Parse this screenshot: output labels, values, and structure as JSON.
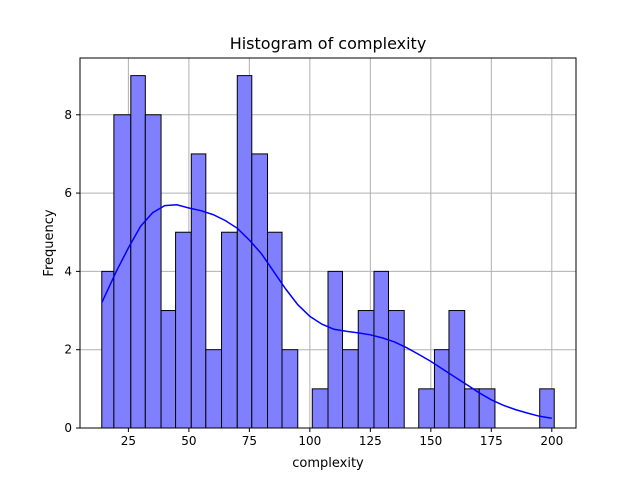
{
  "chart_data": {
    "type": "histogram",
    "title": "Histogram of complexity",
    "xlabel": "complexity",
    "ylabel": "Frequency",
    "xlim": [
      5,
      210
    ],
    "ylim": [
      0,
      9.45
    ],
    "xticks": [
      25,
      50,
      75,
      100,
      125,
      150,
      175,
      200
    ],
    "yticks": [
      0,
      2,
      4,
      6,
      8
    ],
    "grid": true,
    "bar_color": "#8080ff",
    "bar_edge_color": "#000000",
    "bins": [
      {
        "x0": 14.0,
        "x1": 19.0,
        "count": 4
      },
      {
        "x0": 19.0,
        "x1": 26.0,
        "count": 8
      },
      {
        "x0": 26.0,
        "x1": 32.0,
        "count": 9
      },
      {
        "x0": 32.0,
        "x1": 38.5,
        "count": 8
      },
      {
        "x0": 38.5,
        "x1": 44.5,
        "count": 3
      },
      {
        "x0": 44.5,
        "x1": 51.0,
        "count": 5
      },
      {
        "x0": 51.0,
        "x1": 57.0,
        "count": 7
      },
      {
        "x0": 57.0,
        "x1": 63.5,
        "count": 2
      },
      {
        "x0": 63.5,
        "x1": 70.0,
        "count": 5
      },
      {
        "x0": 70.0,
        "x1": 76.0,
        "count": 9
      },
      {
        "x0": 76.0,
        "x1": 82.5,
        "count": 7
      },
      {
        "x0": 82.5,
        "x1": 88.5,
        "count": 5
      },
      {
        "x0": 88.5,
        "x1": 95.0,
        "count": 2
      },
      {
        "x0": 95.0,
        "x1": 101.0,
        "count": 0
      },
      {
        "x0": 101.0,
        "x1": 107.5,
        "count": 1
      },
      {
        "x0": 107.5,
        "x1": 113.5,
        "count": 4
      },
      {
        "x0": 113.5,
        "x1": 120.0,
        "count": 2
      },
      {
        "x0": 120.0,
        "x1": 126.5,
        "count": 3
      },
      {
        "x0": 126.5,
        "x1": 132.5,
        "count": 4
      },
      {
        "x0": 132.5,
        "x1": 139.0,
        "count": 3
      },
      {
        "x0": 139.0,
        "x1": 145.0,
        "count": 0
      },
      {
        "x0": 145.0,
        "x1": 151.5,
        "count": 1
      },
      {
        "x0": 151.5,
        "x1": 157.5,
        "count": 2
      },
      {
        "x0": 157.5,
        "x1": 164.0,
        "count": 3
      },
      {
        "x0": 164.0,
        "x1": 170.0,
        "count": 1
      },
      {
        "x0": 170.0,
        "x1": 176.5,
        "count": 1
      },
      {
        "x0": 176.5,
        "x1": 182.5,
        "count": 0
      },
      {
        "x0": 182.5,
        "x1": 189.0,
        "count": 0
      },
      {
        "x0": 189.0,
        "x1": 195.0,
        "count": 0
      },
      {
        "x0": 195.0,
        "x1": 201.0,
        "count": 1
      }
    ],
    "kde": {
      "color": "#0000ff",
      "x": [
        14,
        20,
        25,
        30,
        35,
        40,
        45,
        50,
        55,
        60,
        65,
        70,
        75,
        80,
        85,
        90,
        95,
        100,
        105,
        110,
        115,
        120,
        125,
        130,
        135,
        140,
        145,
        150,
        155,
        160,
        165,
        170,
        175,
        180,
        185,
        190,
        195,
        200
      ],
      "y": [
        3.2,
        4.0,
        4.6,
        5.15,
        5.5,
        5.68,
        5.7,
        5.62,
        5.55,
        5.45,
        5.3,
        5.1,
        4.8,
        4.45,
        4.0,
        3.55,
        3.15,
        2.85,
        2.65,
        2.52,
        2.47,
        2.43,
        2.38,
        2.3,
        2.2,
        2.05,
        1.88,
        1.7,
        1.5,
        1.3,
        1.1,
        0.9,
        0.72,
        0.58,
        0.47,
        0.38,
        0.3,
        0.25
      ]
    }
  }
}
